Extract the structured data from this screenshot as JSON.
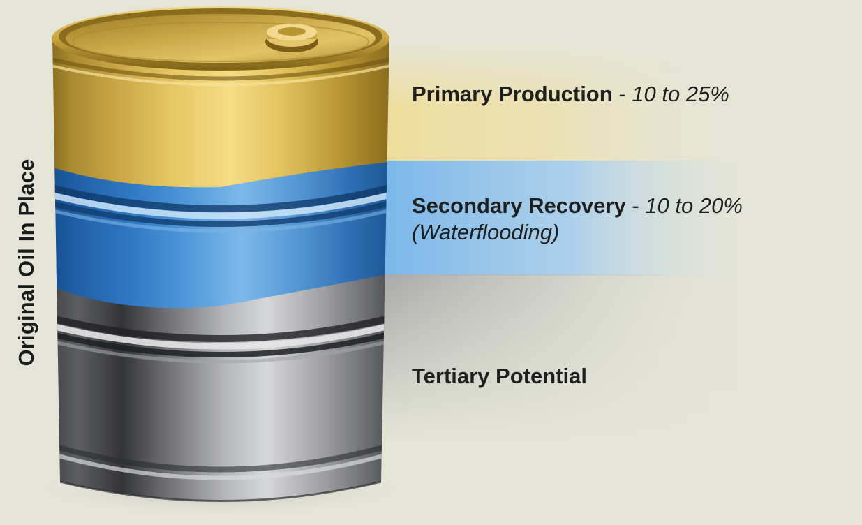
{
  "vertical_label": "Original Oil In Place",
  "layers": [
    {
      "name": "Primary Production",
      "separator": "-",
      "range": "10 to 25%",
      "note": "",
      "color": "#d8b24c"
    },
    {
      "name": "Secondary Recovery",
      "separator": "-",
      "range": "10 to 20%",
      "note": "(Waterflooding)",
      "color": "#3c86d0"
    },
    {
      "name": "Tertiary Potential",
      "separator": "",
      "range": "",
      "note": "",
      "color": "#9a9b9e"
    }
  ],
  "colors": {
    "background": "#e5e5d7",
    "gold": "#d8b24c",
    "blue": "#3c86d0",
    "steel": "#9a9b9e",
    "text": "#1f1f1f"
  },
  "icons": [
    "oil-barrel-icon"
  ]
}
